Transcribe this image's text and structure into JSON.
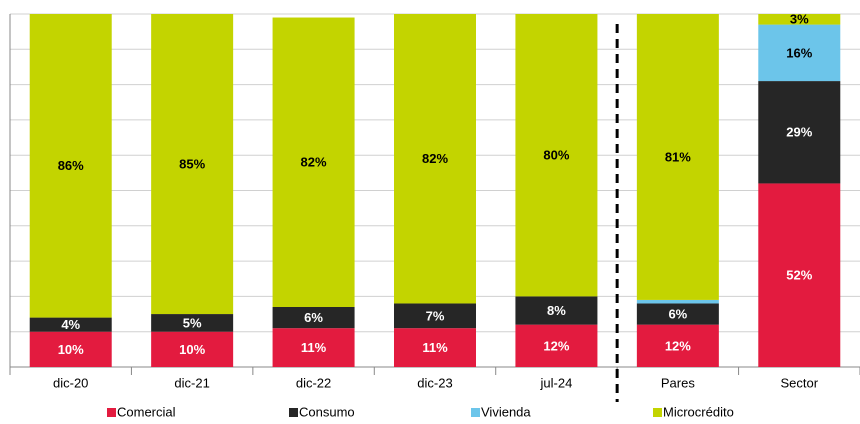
{
  "chart_data": {
    "type": "stacked_bar",
    "categories": [
      "dic-20",
      "dic-21",
      "dic-22",
      "dic-23",
      "jul-24",
      "Pares",
      "Sector"
    ],
    "series": [
      {
        "name": "Comercial",
        "color": "#e31b3f",
        "values": [
          10,
          10,
          11,
          11,
          12,
          12,
          52
        ],
        "value_labels": [
          "10%",
          "10%",
          "11%",
          "11%",
          "12%",
          "12%",
          "52%"
        ]
      },
      {
        "name": "Consumo",
        "color": "#262626",
        "values": [
          4,
          5,
          6,
          7,
          8,
          6,
          29
        ],
        "value_labels": [
          "4%",
          "5%",
          "6%",
          "7%",
          "8%",
          "6%",
          "29%"
        ]
      },
      {
        "name": "Vivienda",
        "color": "#6cc5ea",
        "values": [
          0,
          0,
          0,
          0,
          0,
          1,
          16
        ],
        "value_labels": [
          null,
          null,
          null,
          null,
          null,
          null,
          "16%"
        ]
      },
      {
        "name": "Microcrédito",
        "color": "#c3d400",
        "values": [
          86,
          85,
          82,
          82,
          80,
          81,
          3
        ],
        "value_labels": [
          "86%",
          "85%",
          "82%",
          "82%",
          "80%",
          "81%",
          "3%"
        ]
      }
    ],
    "ylim": [
      0,
      100
    ],
    "yticks": [
      0,
      10,
      20,
      30,
      40,
      50,
      60,
      70,
      80,
      90,
      100
    ],
    "grid": true
  }
}
